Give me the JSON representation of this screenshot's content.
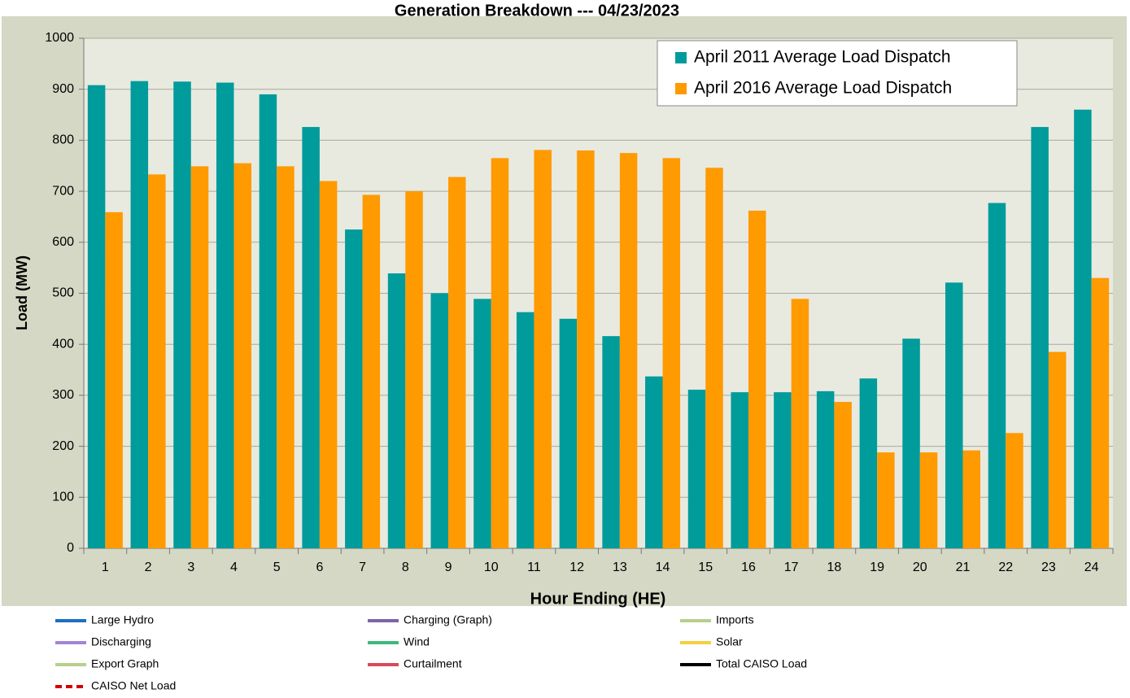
{
  "chart_data": {
    "type": "bar",
    "title": "Generation Breakdown --- 04/23/2023",
    "x_label": "Hour Ending (HE)",
    "y_label": "Load (MW)",
    "categories": [
      "1",
      "2",
      "3",
      "4",
      "5",
      "6",
      "7",
      "8",
      "9",
      "10",
      "11",
      "12",
      "13",
      "14",
      "15",
      "16",
      "17",
      "18",
      "19",
      "20",
      "21",
      "22",
      "23",
      "24"
    ],
    "series": [
      {
        "name": "April 2011 Average Load Dispatch",
        "color": "#009b9b",
        "values": [
          908,
          916,
          915,
          913,
          890,
          826,
          625,
          539,
          500,
          489,
          463,
          450,
          416,
          337,
          311,
          306,
          306,
          308,
          333,
          411,
          521,
          677,
          826,
          860
        ]
      },
      {
        "name": "April 2016 Average Load Dispatch",
        "color": "#ff9a00",
        "values": [
          659,
          733,
          749,
          755,
          749,
          720,
          693,
          700,
          728,
          765,
          781,
          780,
          775,
          765,
          746,
          662,
          489,
          287,
          188,
          188,
          192,
          226,
          385,
          530
        ]
      }
    ],
    "ylim": [
      0,
      1000
    ],
    "yticks": [
      0,
      100,
      200,
      300,
      400,
      500,
      600,
      700,
      800,
      900,
      1000
    ],
    "grid": true,
    "legend": "upper right"
  },
  "footer_legend": [
    {
      "name": "Large Hydro",
      "color": "#1f6fc0"
    },
    {
      "name": "Charging (Graph)",
      "color": "#7e63a6"
    },
    {
      "name": "Imports",
      "color": "#b8cf8a"
    },
    {
      "name": "Discharging",
      "color": "#a384d6"
    },
    {
      "name": "Wind",
      "color": "#3cba7a"
    },
    {
      "name": "Solar",
      "color": "#f5cf3f"
    },
    {
      "name": "Export Graph",
      "color": "#b8cf8a"
    },
    {
      "name": "Curtailment",
      "color": "#d9485a"
    },
    {
      "name": "Total CAISO Load",
      "color": "#000000"
    },
    {
      "name": "CAISO Net Load",
      "color": "#d40000",
      "style": "dashed"
    }
  ]
}
